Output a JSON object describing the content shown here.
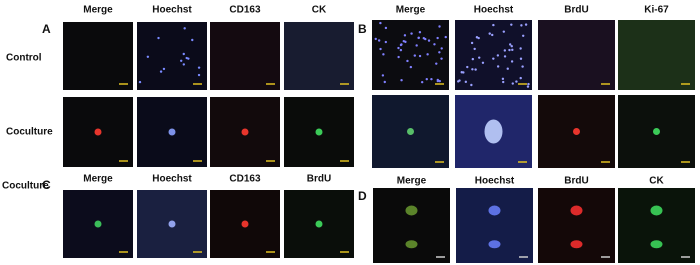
{
  "panels": [
    {
      "label": "A",
      "headers": [
        "Merge",
        "Hoechst",
        "CD163",
        "CK"
      ],
      "rows": [
        "Control",
        "Coculture"
      ]
    },
    {
      "label": "B",
      "headers": [
        "Merge",
        "Hoechst",
        "BrdU",
        "Ki-67"
      ]
    },
    {
      "label": "C",
      "headers": [
        "Merge",
        "Hoechst",
        "CD163",
        "BrdU"
      ],
      "rows": [
        "Coculture"
      ]
    },
    {
      "label": "D",
      "headers": [
        "Merge",
        "Hoechst",
        "BrdU",
        "CK"
      ]
    }
  ]
}
